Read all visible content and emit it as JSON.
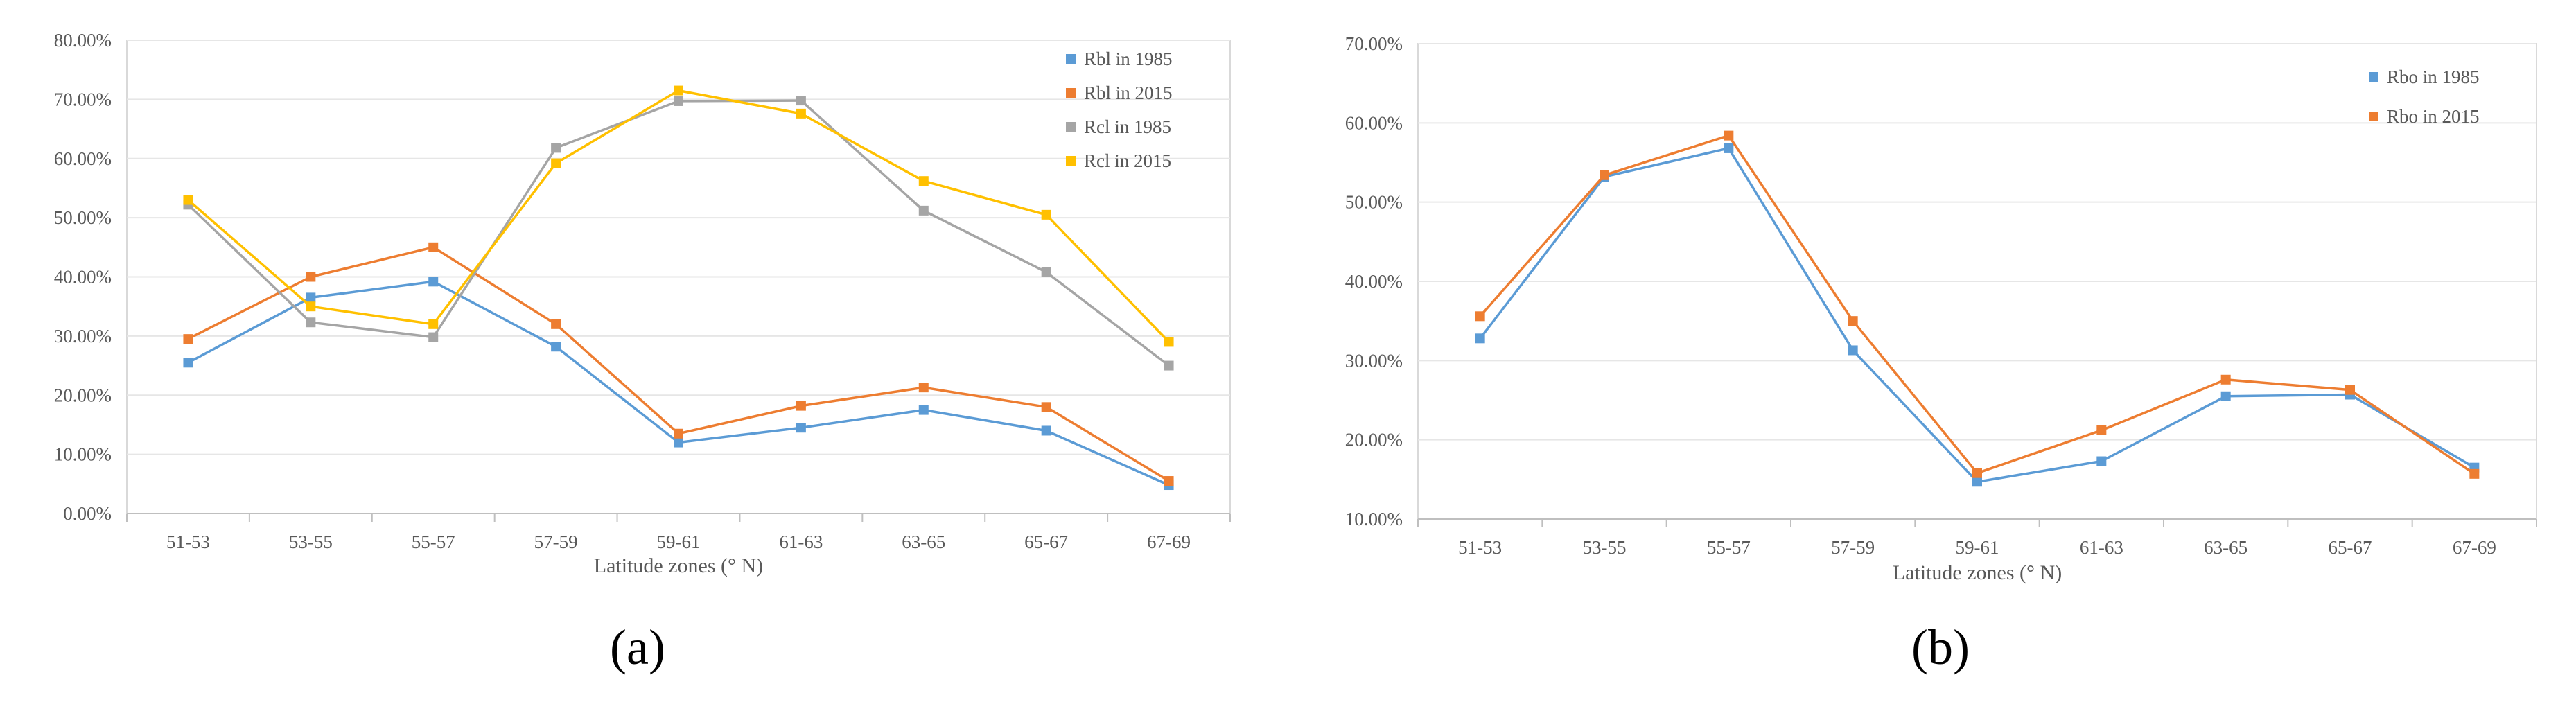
{
  "panels": [
    {
      "panel_label": "(a)",
      "chart_data": {
        "type": "line",
        "title": "",
        "xlabel": "Latitude zones (° N)",
        "ylabel": "",
        "categories": [
          "51-53",
          "53-55",
          "55-57",
          "57-59",
          "59-61",
          "61-63",
          "63-65",
          "65-67",
          "67-69"
        ],
        "ylim": [
          0,
          80
        ],
        "ytick_step": 10,
        "ytick_labels": [
          "0.00%",
          "10.00%",
          "20.00%",
          "30.00%",
          "40.00%",
          "50.00%",
          "60.00%",
          "70.00%",
          "80.00%"
        ],
        "grid": true,
        "legend_position": "top-right",
        "series": [
          {
            "name": "Rbl in 1985",
            "color": "#5b9bd5",
            "values": [
              25.5,
              36.5,
              39.2,
              28.2,
              12.0,
              14.5,
              17.5,
              14.0,
              4.8
            ]
          },
          {
            "name": "Rbl in 2015",
            "color": "#ed7d31",
            "values": [
              29.5,
              40.0,
              45.0,
              32.0,
              13.5,
              18.2,
              21.3,
              18.0,
              5.5
            ]
          },
          {
            "name": "Rcl in 1985",
            "color": "#a5a5a5",
            "values": [
              52.2,
              32.3,
              29.8,
              61.8,
              69.7,
              69.8,
              51.2,
              40.8,
              25.0
            ]
          },
          {
            "name": "Rcl in 2015",
            "color": "#ffc000",
            "values": [
              53.0,
              35.0,
              32.0,
              59.2,
              71.5,
              67.6,
              56.2,
              50.5,
              29.0
            ]
          }
        ]
      }
    },
    {
      "panel_label": "(b)",
      "chart_data": {
        "type": "line",
        "title": "",
        "xlabel": "Latitude zones (° N)",
        "ylabel": "",
        "categories": [
          "51-53",
          "53-55",
          "55-57",
          "57-59",
          "59-61",
          "61-63",
          "63-65",
          "65-67",
          "67-69"
        ],
        "ylim": [
          10,
          70
        ],
        "ytick_step": 10,
        "ytick_labels": [
          "10.00%",
          "20.00%",
          "30.00%",
          "40.00%",
          "50.00%",
          "60.00%",
          "70.00%"
        ],
        "grid": true,
        "legend_position": "top-right",
        "series": [
          {
            "name": "Rbo in 1985",
            "color": "#5b9bd5",
            "values": [
              32.8,
              53.2,
              56.8,
              31.3,
              14.7,
              17.3,
              25.5,
              25.7,
              16.5
            ]
          },
          {
            "name": "Rbo in 2015",
            "color": "#ed7d31",
            "values": [
              35.6,
              53.4,
              58.4,
              35.0,
              15.8,
              21.2,
              27.6,
              26.3,
              15.7
            ]
          }
        ]
      }
    }
  ]
}
